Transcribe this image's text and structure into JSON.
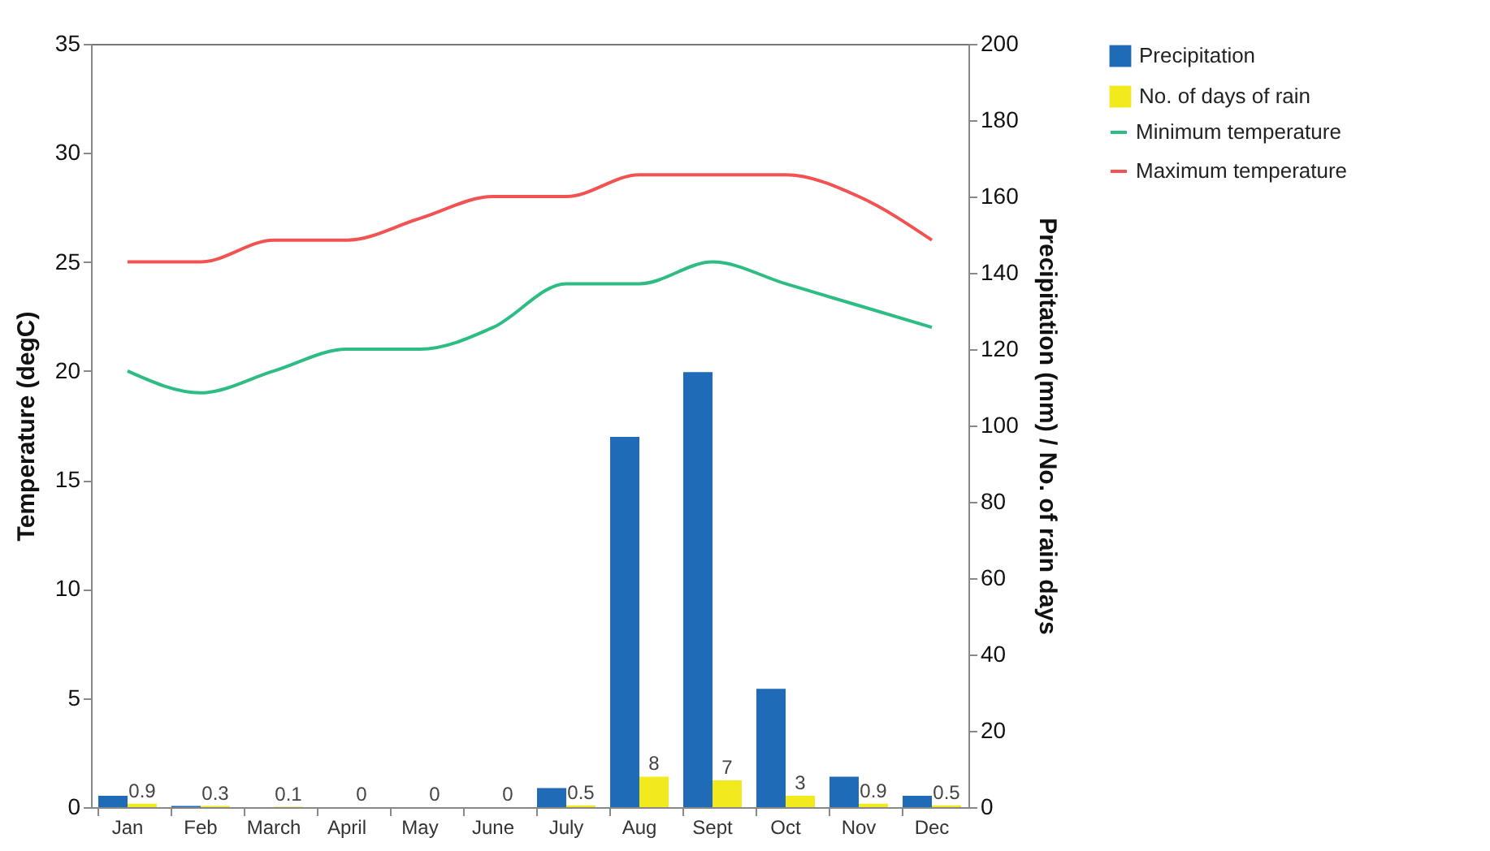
{
  "chart_data": {
    "type": "bar",
    "categories": [
      "Jan",
      "Feb",
      "March",
      "April",
      "May",
      "June",
      "July",
      "Aug",
      "Sept",
      "Oct",
      "Nov",
      "Dec"
    ],
    "ylabel": "Temperature (degC)",
    "y2label": "Precipitation (mm) / No. of rain days",
    "ylim": [
      0,
      35
    ],
    "yticks": [
      0,
      5,
      10,
      15,
      20,
      25,
      30,
      35
    ],
    "y2lim": [
      0,
      200
    ],
    "y2ticks": [
      0,
      20,
      40,
      60,
      80,
      100,
      120,
      140,
      160,
      180,
      200
    ],
    "legend": "right",
    "series": [
      {
        "name": "Precipitation",
        "axis": "y2",
        "color": "#1f6bb8",
        "values": [
          3,
          0.3,
          0,
          0,
          0,
          0,
          5,
          97,
          114,
          31,
          8,
          3
        ]
      },
      {
        "name": "No. of days of rain",
        "axis": "y2",
        "color": "#f2ea1c",
        "values": [
          0.9,
          0.3,
          0.1,
          0,
          0,
          0,
          0.5,
          8,
          7,
          3,
          0.9,
          0.5
        ],
        "value_labels": [
          "0.9",
          "0.3",
          "0.1",
          "0",
          "0",
          "0",
          "0.5",
          "8",
          "7",
          "3",
          "0.9",
          "0.5"
        ]
      },
      {
        "name": "Minimum temperature",
        "type": "line",
        "color": "#2dbd84",
        "values": [
          20,
          19,
          20,
          21,
          21,
          22,
          24,
          24,
          25,
          24,
          23,
          22
        ]
      },
      {
        "name": "Maximum temperature",
        "type": "line",
        "color": "#f25252",
        "values": [
          25,
          25,
          26,
          26,
          27,
          28,
          28,
          29,
          29,
          29,
          28,
          26
        ]
      }
    ]
  }
}
